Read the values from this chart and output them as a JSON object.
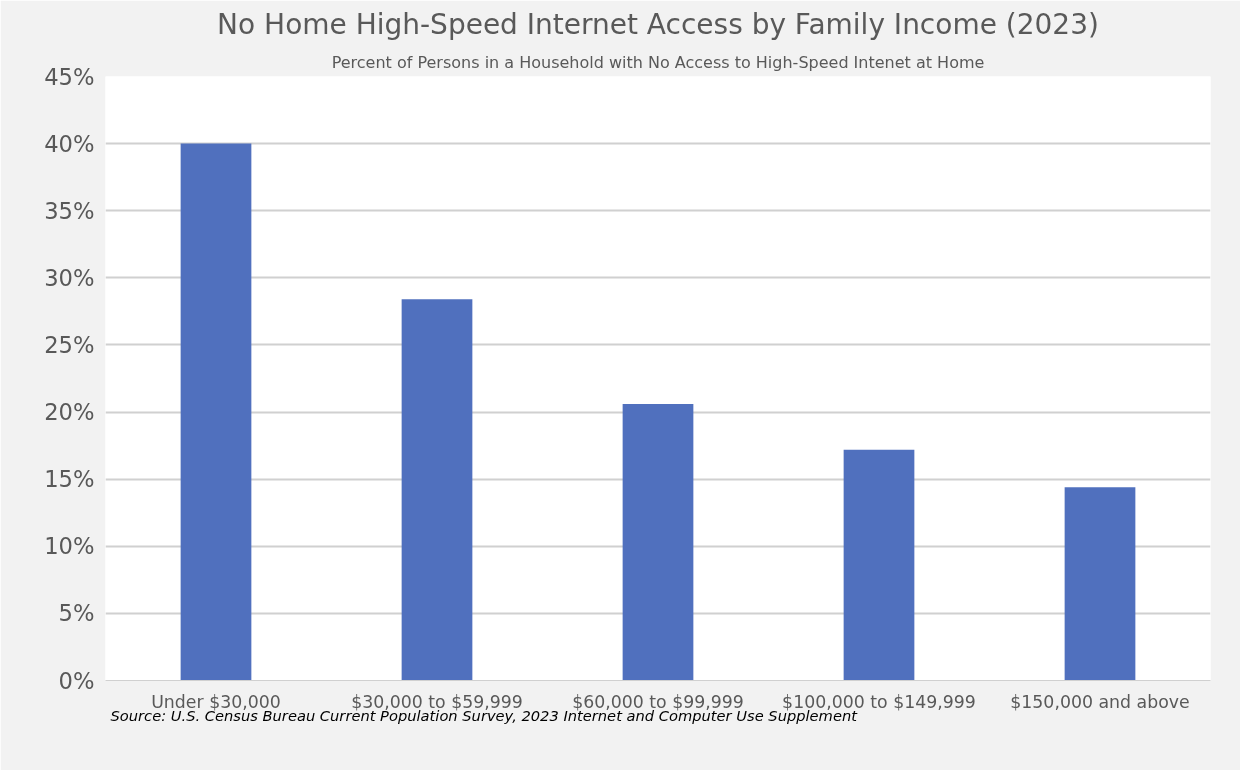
{
  "chart_data": {
    "type": "bar",
    "title": "No Home High-Speed Internet Access by Family Income (2023)",
    "subtitle": "Percent of Persons in a Household with No Access to High-Speed Intenet at Home",
    "categories": [
      "Under $30,000",
      "$30,000 to $59,999",
      "$60,000 to $99,999",
      "$100,000 to $149,999",
      "$150,000 and above"
    ],
    "values": [
      40.0,
      28.4,
      20.6,
      17.2,
      14.4
    ],
    "color": "#5070be",
    "ylim": [
      0,
      45
    ],
    "yticks": [
      {
        "value": 0,
        "label": "0%"
      },
      {
        "value": 5,
        "label": "5%"
      },
      {
        "value": 10,
        "label": "10%"
      },
      {
        "value": 15,
        "label": "15%"
      },
      {
        "value": 20,
        "label": "20%"
      },
      {
        "value": 25,
        "label": "25%"
      },
      {
        "value": 30,
        "label": "30%"
      },
      {
        "value": 35,
        "label": "35%"
      },
      {
        "value": 40,
        "label": "40%"
      },
      {
        "value": 45,
        "label": "45%"
      }
    ],
    "grid": "y",
    "annotations": [
      "Source: U.S. Census Bureau Current Population Survey, 2023 Internet and Computer Use Supplement"
    ]
  }
}
